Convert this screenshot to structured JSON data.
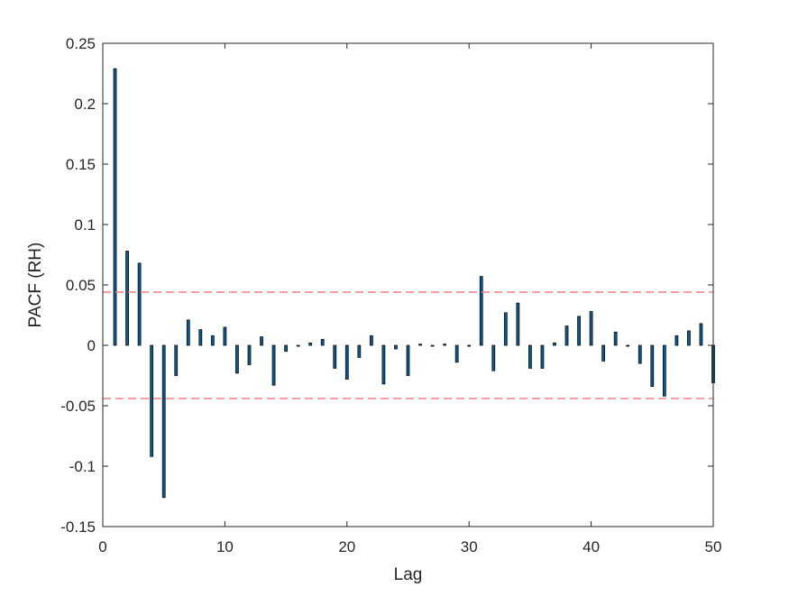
{
  "chart_data": {
    "type": "bar",
    "xlabel": "Lag",
    "ylabel": "PACF (RH)",
    "xlim": [
      0,
      50
    ],
    "ylim": [
      -0.15,
      0.25
    ],
    "xticks": [
      0,
      10,
      20,
      30,
      40,
      50
    ],
    "xtick_labels": [
      "0",
      "10",
      "20",
      "30",
      "40",
      "50"
    ],
    "yticks": [
      -0.15,
      -0.1,
      -0.05,
      0,
      0.05,
      0.1,
      0.15,
      0.2,
      0.25
    ],
    "ytick_labels": [
      "-0.15",
      "-0.1",
      "-0.05",
      "0",
      "0.05",
      "0.1",
      "0.15",
      "0.2",
      "0.25"
    ],
    "grid": false,
    "confidence_bounds": [
      0.044,
      -0.044
    ],
    "bar_color": "#0b5a8f",
    "bar_edge_color": "#111111",
    "bound_color": "#f08080",
    "lags": [
      1,
      2,
      3,
      4,
      5,
      6,
      7,
      8,
      9,
      10,
      11,
      12,
      13,
      14,
      15,
      16,
      17,
      18,
      19,
      20,
      21,
      22,
      23,
      24,
      25,
      26,
      27,
      28,
      29,
      30,
      31,
      32,
      33,
      34,
      35,
      36,
      37,
      38,
      39,
      40,
      41,
      42,
      43,
      44,
      45,
      46,
      47,
      48,
      49,
      50
    ],
    "values": [
      0.229,
      0.078,
      0.068,
      -0.092,
      -0.126,
      -0.025,
      0.021,
      0.013,
      0.008,
      0.015,
      -0.023,
      -0.016,
      0.007,
      -0.033,
      -0.005,
      0.0,
      0.002,
      0.005,
      -0.019,
      -0.028,
      -0.01,
      0.008,
      -0.032,
      -0.003,
      -0.025,
      0.001,
      0.0,
      0.001,
      -0.014,
      0.0,
      0.057,
      -0.021,
      0.027,
      0.035,
      -0.019,
      -0.019,
      0.002,
      0.016,
      0.024,
      0.028,
      -0.013,
      0.011,
      0.0,
      -0.015,
      -0.034,
      -0.042,
      0.008,
      0.012,
      0.018,
      -0.031
    ]
  }
}
